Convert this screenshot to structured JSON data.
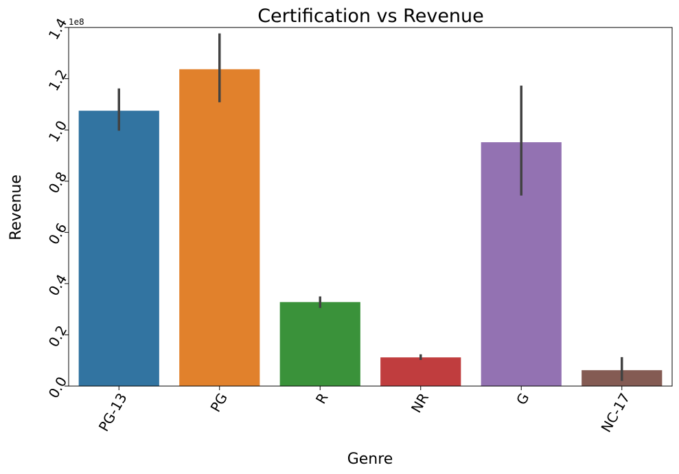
{
  "chart_data": {
    "type": "bar",
    "title": "Certification vs Revenue",
    "xlabel": "Genre",
    "ylabel": "Revenue",
    "categories": [
      "PG-13",
      "PG",
      "R",
      "NR",
      "G",
      "NC-17"
    ],
    "values": [
      107500000,
      123700000,
      32800000,
      11200000,
      95200000,
      6200000
    ],
    "error_low": [
      99700000,
      110800000,
      30500000,
      10200000,
      74400000,
      2000000
    ],
    "error_high": [
      116200000,
      137700000,
      35000000,
      12400000,
      117300000,
      11300000
    ],
    "colors": [
      "#3274a1",
      "#e1812c",
      "#3a923a",
      "#c03d3e",
      "#9372b2",
      "#845b53"
    ],
    "error_color": "#424242",
    "ylim": [
      0,
      140000000
    ],
    "y_ticks": [
      0,
      20000000,
      40000000,
      60000000,
      80000000,
      100000000,
      120000000,
      140000000
    ],
    "y_tick_labels": [
      "0.0",
      "0.2",
      "0.4",
      "0.6",
      "0.8",
      "1.0",
      "1.2",
      "1.4"
    ],
    "y_offset_label": "1e8",
    "tick_label_rotation_degrees": 60,
    "grid": false,
    "legend": "none"
  }
}
